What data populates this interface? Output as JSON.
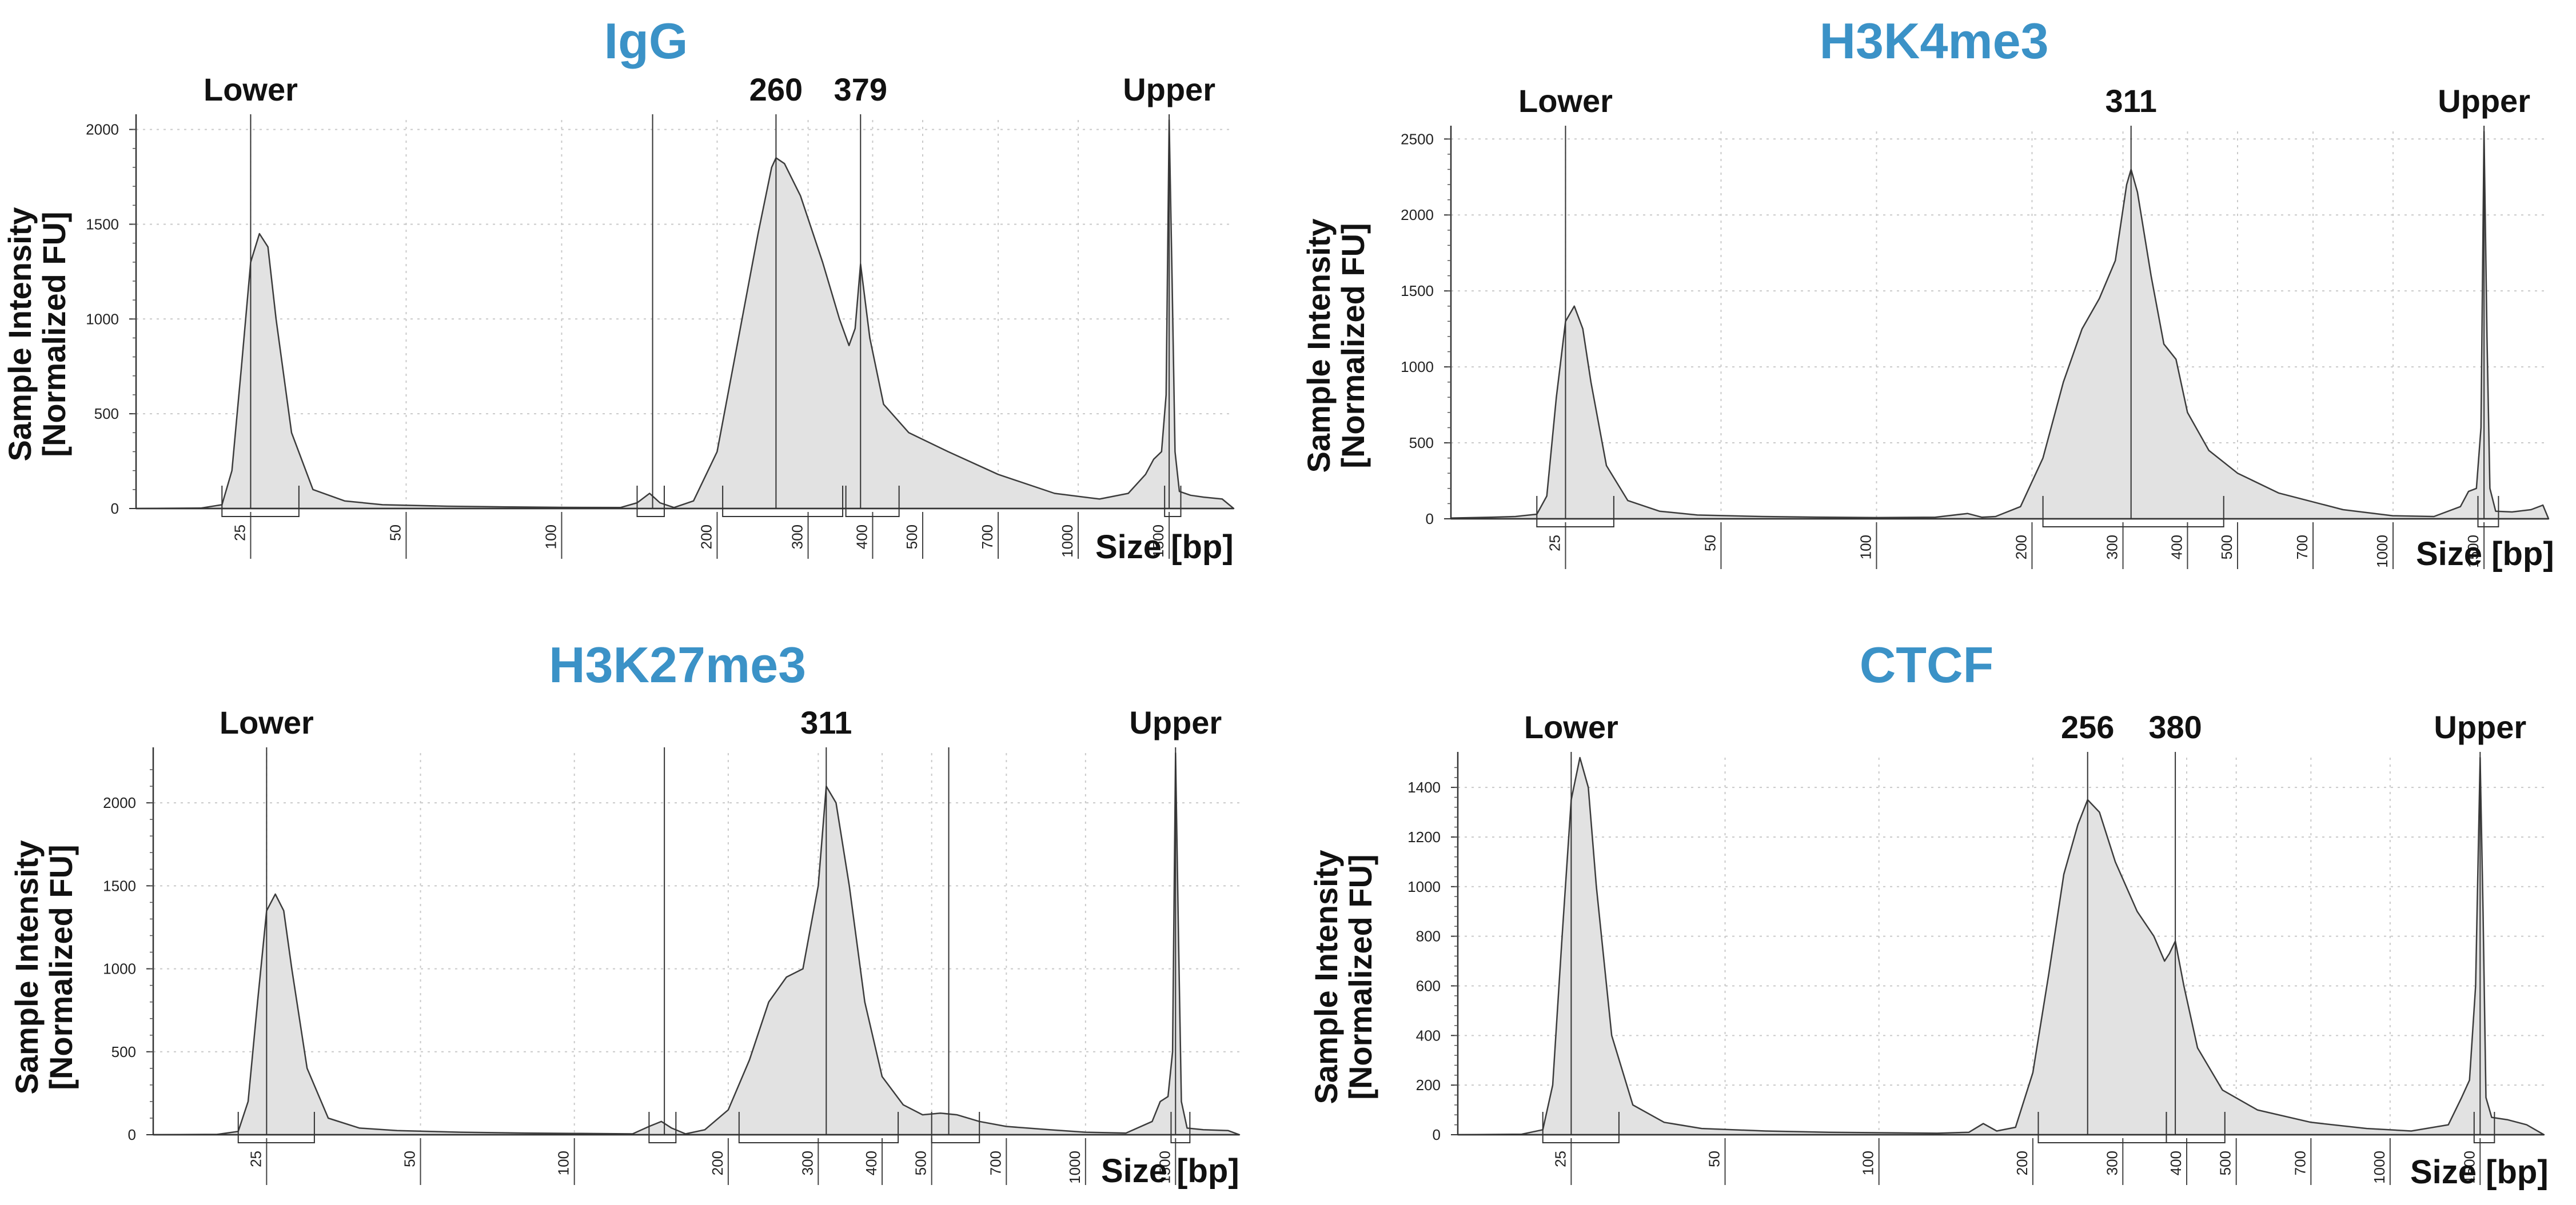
{
  "style": {
    "title_color": "#3b92c7",
    "trace_fill": "#e2e2e2",
    "trace_stroke": "#3c3c3c",
    "grid_color": "#c9c9c9"
  },
  "x_unit_label": "Size [bp]",
  "y_label": [
    "Sample Intensity",
    "[Normalized FU]"
  ],
  "chart_data": [
    {
      "type": "area",
      "title": "IgG",
      "xlabel": "Size [bp]",
      "ylabel": "Sample Intensity [Normalized FU]",
      "x_scale": "log",
      "ylim": [
        0,
        2050
      ],
      "y_ticks": [
        0,
        500,
        1000,
        1500,
        2000
      ],
      "x_tick_labels": [
        "25",
        "50",
        "100",
        "200",
        "300",
        "400",
        "500",
        "700",
        "1000",
        "1500"
      ],
      "peak_labels": [
        {
          "label": "Lower",
          "x": 25
        },
        {
          "label": "260",
          "x": 260
        },
        {
          "label": "379",
          "x": 379
        },
        {
          "label": "Upper",
          "x": 1500
        }
      ],
      "trace": {
        "x": [
          15,
          20,
          22,
          23,
          24,
          25,
          26,
          27,
          28,
          30,
          33,
          38,
          45,
          60,
          80,
          100,
          130,
          140,
          148,
          155,
          165,
          180,
          200,
          220,
          240,
          255,
          260,
          270,
          290,
          320,
          345,
          360,
          370,
          379,
          395,
          420,
          470,
          560,
          700,
          900,
          1100,
          1250,
          1350,
          1400,
          1450,
          1480,
          1500,
          1520,
          1540,
          1570,
          1650,
          1750,
          1900,
          2000
        ],
        "y": [
          0,
          2,
          20,
          200,
          750,
          1300,
          1450,
          1380,
          1000,
          400,
          100,
          40,
          20,
          12,
          8,
          6,
          5,
          30,
          80,
          30,
          5,
          40,
          300,
          900,
          1450,
          1800,
          1850,
          1820,
          1650,
          1300,
          1000,
          860,
          950,
          1290,
          900,
          550,
          400,
          300,
          180,
          80,
          50,
          80,
          180,
          260,
          300,
          600,
          2050,
          1200,
          300,
          90,
          70,
          60,
          50,
          0
        ]
      },
      "markers": [
        150
      ],
      "windows": [
        [
          22,
          31
        ],
        [
          140,
          158
        ],
        [
          205,
          350
        ],
        [
          355,
          450
        ],
        [
          1470,
          1580
        ]
      ],
      "marker_label": ""
    },
    {
      "type": "area",
      "title": "H3K4me3",
      "xlabel": "Size [bp]",
      "ylabel": "Sample Intensity [Normalized FU]",
      "x_scale": "log",
      "ylim": [
        0,
        2550
      ],
      "y_ticks": [
        0,
        500,
        1000,
        1500,
        2000,
        2500
      ],
      "x_tick_labels": [
        "25",
        "50",
        "100",
        "200",
        "300",
        "400",
        "500",
        "700",
        "1000",
        "1500"
      ],
      "peak_labels": [
        {
          "label": "Lower",
          "x": 25
        },
        {
          "label": "311",
          "x": 311
        },
        {
          "label": "Upper",
          "x": 1500
        }
      ],
      "trace": {
        "x": [
          15,
          18,
          20,
          22,
          23,
          24,
          25,
          26,
          27,
          28,
          30,
          33,
          38,
          45,
          60,
          80,
          100,
          130,
          150,
          160,
          170,
          190,
          210,
          230,
          250,
          270,
          290,
          305,
          311,
          320,
          340,
          360,
          380,
          400,
          440,
          500,
          600,
          800,
          1000,
          1200,
          1350,
          1400,
          1450,
          1480,
          1500,
          1520,
          1540,
          1580,
          1700,
          1850,
          1950,
          2000
        ],
        "y": [
          5,
          10,
          15,
          30,
          150,
          800,
          1300,
          1400,
          1250,
          900,
          350,
          120,
          50,
          25,
          15,
          10,
          8,
          10,
          35,
          10,
          15,
          80,
          400,
          900,
          1250,
          1450,
          1700,
          2200,
          2300,
          2150,
          1600,
          1150,
          1050,
          700,
          450,
          300,
          170,
          60,
          20,
          15,
          80,
          180,
          200,
          600,
          2550,
          1200,
          200,
          50,
          45,
          60,
          90,
          0
        ]
      },
      "markers": [],
      "windows": [
        [
          22,
          31
        ],
        [
          210,
          470
        ],
        [
          1460,
          1600
        ]
      ],
      "marker_label": ""
    },
    {
      "type": "area",
      "title": "H3K27me3",
      "xlabel": "Size [bp]",
      "ylabel": "Sample Intensity [Normalized FU]",
      "x_scale": "log",
      "ylim": [
        0,
        2300
      ],
      "y_ticks": [
        0,
        500,
        1000,
        1500,
        2000
      ],
      "x_tick_labels": [
        "25",
        "50",
        "100",
        "200",
        "300",
        "400",
        "500",
        "700",
        "1000",
        "1500"
      ],
      "peak_labels": [
        {
          "label": "Lower",
          "x": 25
        },
        {
          "label": "311",
          "x": 311
        },
        {
          "label": "Upper",
          "x": 1500
        }
      ],
      "trace": {
        "x": [
          15,
          20,
          22,
          23,
          24,
          25,
          26,
          27,
          28,
          30,
          33,
          38,
          45,
          60,
          80,
          100,
          130,
          140,
          148,
          155,
          165,
          180,
          200,
          220,
          240,
          260,
          280,
          300,
          311,
          325,
          345,
          370,
          400,
          440,
          480,
          520,
          560,
          620,
          700,
          850,
          1000,
          1200,
          1350,
          1400,
          1450,
          1480,
          1500,
          1520,
          1540,
          1580,
          1700,
          1900,
          2000
        ],
        "y": [
          0,
          2,
          20,
          200,
          800,
          1350,
          1450,
          1350,
          1000,
          400,
          100,
          40,
          25,
          15,
          10,
          8,
          5,
          50,
          80,
          40,
          5,
          30,
          150,
          450,
          800,
          950,
          1000,
          1500,
          2100,
          2000,
          1500,
          800,
          350,
          180,
          120,
          130,
          120,
          80,
          50,
          30,
          15,
          10,
          80,
          200,
          230,
          500,
          2300,
          1200,
          200,
          40,
          30,
          25,
          0
        ]
      },
      "markers": [
        150,
        540
      ],
      "windows": [
        [
          22,
          31
        ],
        [
          140,
          158
        ],
        [
          210,
          430
        ],
        [
          500,
          620
        ],
        [
          1470,
          1600
        ]
      ],
      "marker_label": ""
    },
    {
      "type": "area",
      "title": "CTCF",
      "xlabel": "Size [bp]",
      "ylabel": "Sample Intensity [Normalized FU]",
      "x_scale": "log",
      "ylim": [
        0,
        1520
      ],
      "y_ticks": [
        0,
        200,
        400,
        600,
        800,
        1000,
        1200,
        1400
      ],
      "x_tick_labels": [
        "25",
        "50",
        "100",
        "200",
        "300",
        "400",
        "500",
        "700",
        "1000",
        "1500"
      ],
      "peak_labels": [
        {
          "label": "Lower",
          "x": 25
        },
        {
          "label": "256",
          "x": 256
        },
        {
          "label": "380",
          "x": 380
        },
        {
          "label": "Upper",
          "x": 1500
        }
      ],
      "trace": {
        "x": [
          15,
          20,
          22,
          23,
          24,
          25,
          26,
          27,
          28,
          30,
          33,
          38,
          45,
          60,
          80,
          100,
          130,
          150,
          160,
          170,
          185,
          200,
          215,
          230,
          245,
          256,
          270,
          290,
          320,
          345,
          362,
          370,
          380,
          395,
          420,
          470,
          550,
          700,
          900,
          1100,
          1300,
          1380,
          1430,
          1470,
          1500,
          1520,
          1540,
          1580,
          1700,
          1850,
          2000
        ],
        "y": [
          0,
          2,
          20,
          200,
          800,
          1350,
          1520,
          1400,
          1000,
          400,
          120,
          50,
          25,
          15,
          10,
          8,
          6,
          10,
          45,
          15,
          30,
          250,
          650,
          1050,
          1250,
          1350,
          1300,
          1100,
          900,
          800,
          700,
          730,
          780,
          600,
          350,
          180,
          100,
          50,
          25,
          15,
          40,
          150,
          220,
          600,
          1520,
          900,
          150,
          70,
          60,
          40,
          0
        ]
      },
      "markers": [],
      "windows": [
        [
          22,
          31
        ],
        [
          205,
          365
        ],
        [
          365,
          475
        ],
        [
          1460,
          1600
        ]
      ],
      "marker_label": ""
    }
  ]
}
